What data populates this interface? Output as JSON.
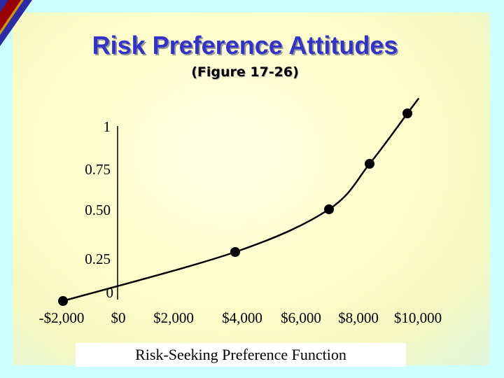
{
  "slide": {
    "title": "Risk Preference Attitudes",
    "subtitle": "(Figure 17-26)",
    "caption": "Risk-Seeking Preference Function"
  },
  "colors": {
    "background": "#ccffff",
    "title": "#3333cc",
    "corner_blue": "#2b2ba8",
    "corner_red": "#990000",
    "corner_gold": "#cc9900"
  },
  "chart_data": {
    "type": "line",
    "title": "",
    "xlabel": "",
    "ylabel": "",
    "x_ticks": [
      {
        "value": -2000,
        "label": "-$2,000"
      },
      {
        "value": 0,
        "label": "$0"
      },
      {
        "value": 2000,
        "label": "$2,000"
      },
      {
        "value": 4000,
        "label": "$4,000"
      },
      {
        "value": 6000,
        "label": "$6,000"
      },
      {
        "value": 8000,
        "label": "$8,000"
      },
      {
        "value": 10000,
        "label": "$10,000"
      }
    ],
    "y_ticks": [
      {
        "value": 0,
        "label": "0"
      },
      {
        "value": 0.25,
        "label": "0.25"
      },
      {
        "value": 0.5,
        "label": "0.50"
      },
      {
        "value": 0.75,
        "label": "0.75"
      },
      {
        "value": 1,
        "label": "1"
      }
    ],
    "points": [
      {
        "x": -2000,
        "y": 0
      },
      {
        "x": 4000,
        "y": 0.25
      },
      {
        "x": 7000,
        "y": 0.5
      },
      {
        "x": 8500,
        "y": 0.75
      },
      {
        "x": 10000,
        "y": 1
      }
    ],
    "xlim": [
      -2000,
      10000
    ],
    "ylim": [
      0,
      1
    ],
    "grid": false,
    "marker": "circle"
  }
}
